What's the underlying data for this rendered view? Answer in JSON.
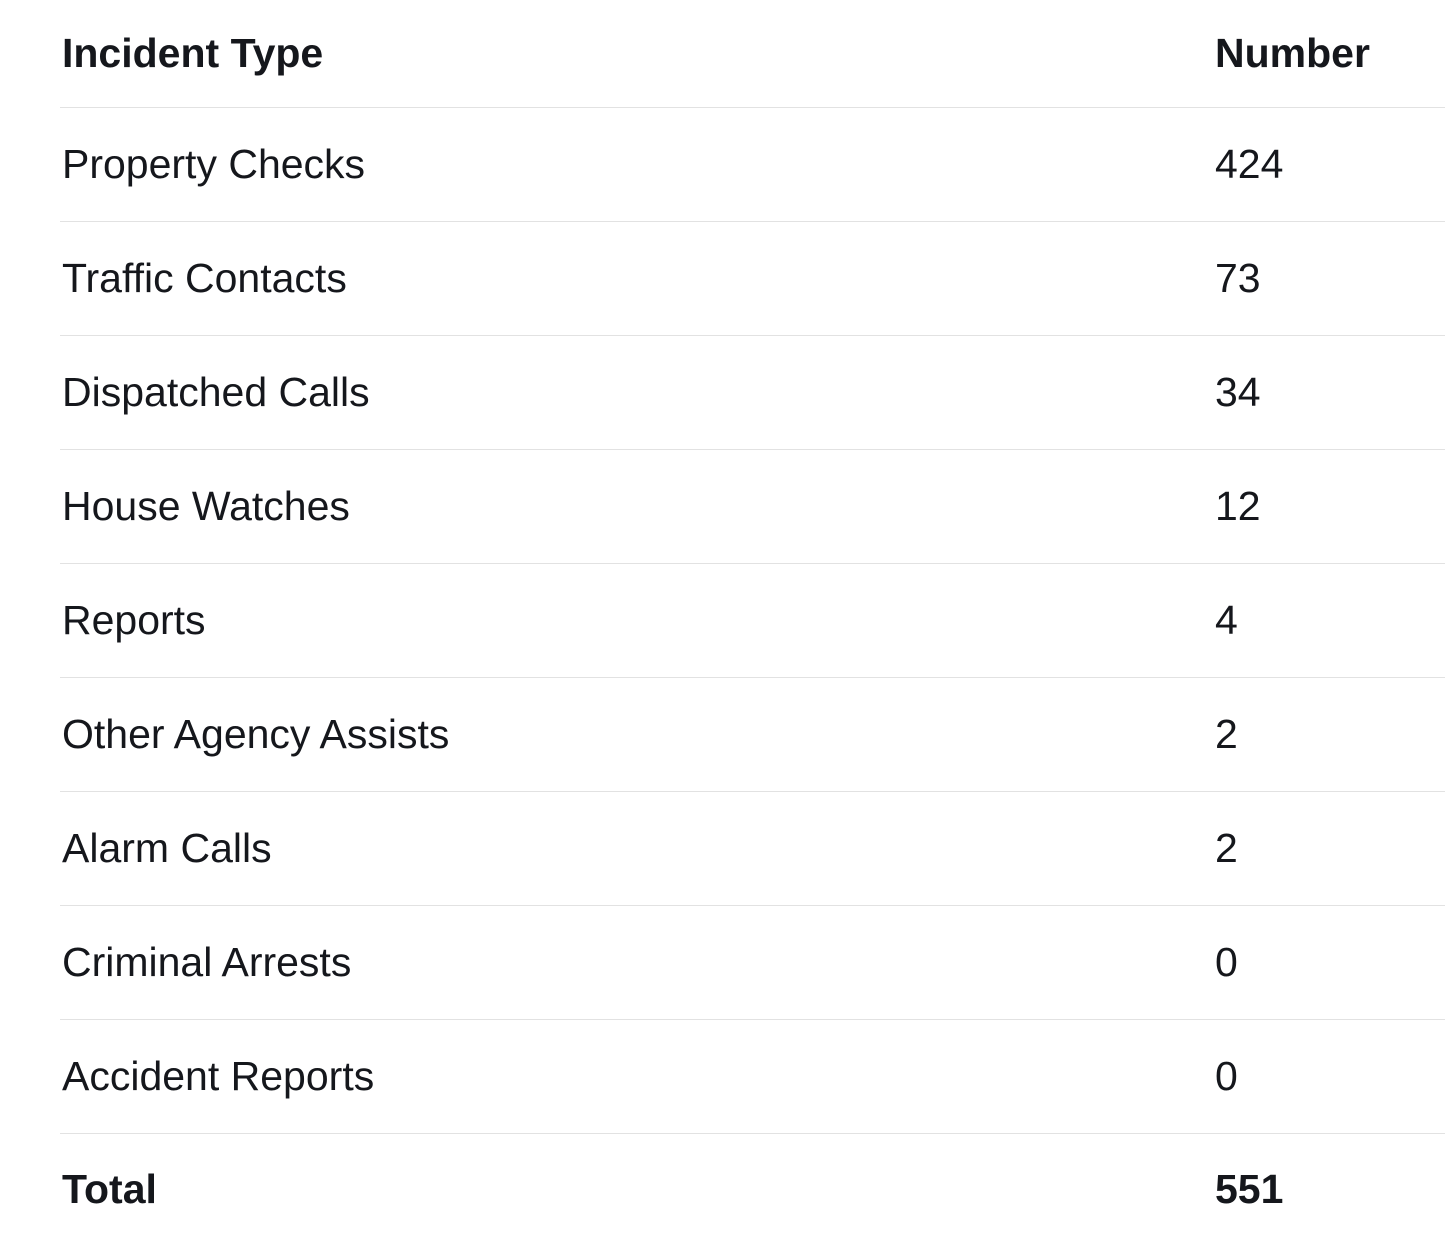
{
  "chart_data": {
    "type": "table",
    "columns": [
      "Incident Type",
      "Number"
    ],
    "rows": [
      {
        "label": "Property Checks",
        "value": "424"
      },
      {
        "label": "Traffic Contacts",
        "value": "73"
      },
      {
        "label": "Dispatched Calls",
        "value": "34"
      },
      {
        "label": "House Watches",
        "value": "12"
      },
      {
        "label": "Reports",
        "value": "4"
      },
      {
        "label": "Other Agency Assists",
        "value": "2"
      },
      {
        "label": "Alarm Calls",
        "value": "2"
      },
      {
        "label": "Criminal Arrests",
        "value": "0"
      },
      {
        "label": "Accident Reports",
        "value": "0"
      }
    ],
    "total": {
      "label": "Total",
      "value": "551"
    },
    "layout": {
      "grid": "horizontal-dividers-only",
      "legend": "none"
    }
  },
  "colors": {
    "text": "#15171c",
    "divider": "#e2e2e2",
    "background": "#ffffff"
  }
}
